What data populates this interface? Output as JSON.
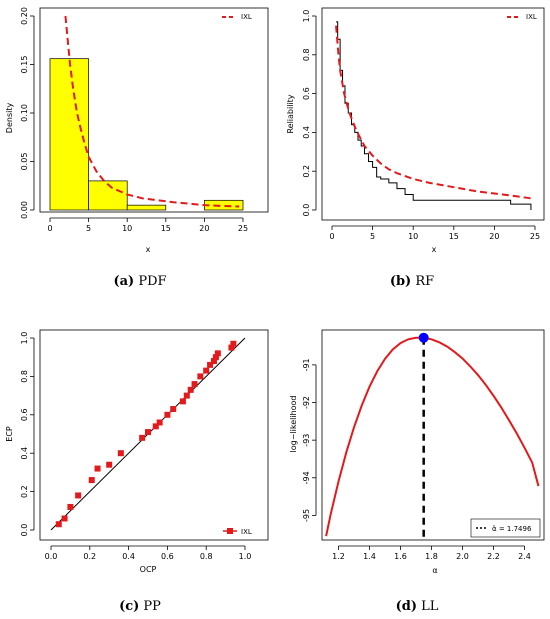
{
  "panels": [
    {
      "id": "a",
      "caption_letter": "(a)",
      "caption_text": "PDF",
      "chart_data": {
        "type": "bar",
        "title": "",
        "xlabel": "x",
        "ylabel": "Density",
        "xlim": [
          0,
          25
        ],
        "ylim": [
          0,
          0.2
        ],
        "xticks": [
          "0",
          "5",
          "10",
          "15",
          "20",
          "25"
        ],
        "xtick_values": [
          0,
          5,
          10,
          15,
          20,
          25
        ],
        "yticks": [
          "0.00",
          "0.05",
          "0.10",
          "0.15",
          "0.20"
        ],
        "ytick_values": [
          0,
          0.05,
          0.1,
          0.15,
          0.2
        ],
        "bins": [
          {
            "x0": 0,
            "x1": 5,
            "value": 0.156
          },
          {
            "x0": 5,
            "x1": 10,
            "value": 0.03
          },
          {
            "x0": 10,
            "x1": 15,
            "value": 0.005
          },
          {
            "x0": 15,
            "x1": 20,
            "value": 0.0
          },
          {
            "x0": 20,
            "x1": 25,
            "value": 0.01
          }
        ],
        "series": [
          {
            "name": "IXL",
            "x": [
              2.0,
              2.3,
              2.6,
              3.0,
              3.5,
              4.0,
              4.5,
              5.0,
              6.0,
              7.0,
              8.0,
              10.0,
              12.0,
              14.0,
              16.0,
              18.0,
              20.0,
              22.0,
              24.5
            ],
            "y": [
              0.2,
              0.175,
              0.15,
              0.125,
              0.1,
              0.083,
              0.068,
              0.055,
              0.04,
              0.03,
              0.023,
              0.016,
              0.012,
              0.01,
              0.008,
              0.0065,
              0.005,
              0.0043,
              0.0036
            ]
          }
        ],
        "legend": "top-right",
        "bar_color": "#ffff00",
        "line_color": "#e31a1c"
      }
    },
    {
      "id": "b",
      "caption_letter": "(b)",
      "caption_text": "RF",
      "chart_data": {
        "type": "line",
        "title": "",
        "xlabel": "x",
        "ylabel": "Reliability",
        "xlim": [
          0,
          25
        ],
        "ylim": [
          0,
          1
        ],
        "xticks": [
          "0",
          "5",
          "10",
          "15",
          "20",
          "25"
        ],
        "xtick_values": [
          0,
          5,
          10,
          15,
          20,
          25
        ],
        "yticks": [
          "0.0",
          "0.2",
          "0.4",
          "0.6",
          "0.8",
          "1.0"
        ],
        "ytick_values": [
          0,
          0.2,
          0.4,
          0.6,
          0.8,
          1.0
        ],
        "series": [
          {
            "name": "",
            "style": "step",
            "x": [
              0.5,
              0.7,
              1.0,
              1.3,
              1.6,
              2.0,
              2.4,
              2.8,
              3.2,
              3.6,
              4.0,
              4.5,
              5.0,
              5.5,
              6.0,
              7.0,
              8.0,
              9.0,
              10.0,
              12.0,
              15.0,
              18.0,
              22.0,
              24.5
            ],
            "y": [
              0.97,
              0.88,
              0.72,
              0.64,
              0.55,
              0.5,
              0.44,
              0.4,
              0.36,
              0.33,
              0.29,
              0.25,
              0.22,
              0.17,
              0.16,
              0.14,
              0.11,
              0.08,
              0.05,
              0.05,
              0.05,
              0.05,
              0.03,
              0.0
            ]
          },
          {
            "name": "IXL",
            "style": "dashed",
            "x": [
              0.5,
              0.8,
              1.0,
              1.5,
              2.0,
              2.5,
              3.0,
              4.0,
              5.0,
              6.0,
              7.0,
              8.0,
              10.0,
              12.0,
              14.0,
              16.0,
              18.0,
              20.0,
              22.0,
              24.5
            ],
            "y": [
              0.95,
              0.8,
              0.72,
              0.6,
              0.52,
              0.46,
              0.41,
              0.33,
              0.28,
              0.24,
              0.21,
              0.19,
              0.16,
              0.14,
              0.125,
              0.11,
              0.095,
              0.085,
              0.075,
              0.06
            ]
          }
        ],
        "legend": "top-right",
        "line_color": "#e31a1c"
      }
    },
    {
      "id": "c",
      "caption_letter": "(c)",
      "caption_text": "PP",
      "chart_data": {
        "type": "scatter",
        "title": "",
        "xlabel": "OCP",
        "ylabel": "ECP",
        "xlim": [
          0,
          1
        ],
        "ylim": [
          0,
          1
        ],
        "xticks": [
          "0.0",
          "0.2",
          "0.4",
          "0.6",
          "0.8",
          "1.0"
        ],
        "xtick_values": [
          0,
          0.2,
          0.4,
          0.6,
          0.8,
          1.0
        ],
        "yticks": [
          "0.0",
          "0.2",
          "0.4",
          "0.6",
          "0.8",
          "1.0"
        ],
        "ytick_values": [
          0,
          0.2,
          0.4,
          0.6,
          0.8,
          1.0
        ],
        "reference_line": {
          "x": [
            0,
            1
          ],
          "y": [
            0,
            1
          ]
        },
        "series": [
          {
            "name": "IXL",
            "x": [
              0.04,
              0.07,
              0.1,
              0.14,
              0.21,
              0.24,
              0.3,
              0.36,
              0.47,
              0.5,
              0.54,
              0.56,
              0.6,
              0.63,
              0.68,
              0.7,
              0.72,
              0.74,
              0.77,
              0.8,
              0.82,
              0.84,
              0.85,
              0.86,
              0.93,
              0.94
            ],
            "y": [
              0.03,
              0.06,
              0.12,
              0.18,
              0.26,
              0.32,
              0.34,
              0.4,
              0.48,
              0.51,
              0.54,
              0.56,
              0.6,
              0.63,
              0.67,
              0.7,
              0.73,
              0.76,
              0.8,
              0.83,
              0.86,
              0.88,
              0.9,
              0.92,
              0.95,
              0.97
            ]
          }
        ],
        "legend": "bottom-right",
        "marker_color": "#e31a1c"
      }
    },
    {
      "id": "d",
      "caption_letter": "(d)",
      "caption_text": "LL",
      "chart_data": {
        "type": "line",
        "title": "",
        "xlabel": "α",
        "ylabel": "log−likelihood",
        "xlim": [
          1.1,
          2.5
        ],
        "ylim": [
          -95.6,
          -90.1
        ],
        "xticks": [
          "1.2",
          "1.4",
          "1.6",
          "1.8",
          "2.0",
          "2.2",
          "2.4"
        ],
        "xtick_values": [
          1.2,
          1.4,
          1.6,
          1.8,
          2.0,
          2.2,
          2.4
        ],
        "yticks": [
          "-95",
          "-94",
          "-93",
          "-92",
          "-91"
        ],
        "ytick_values": [
          -95,
          -94,
          -93,
          -92,
          -91
        ],
        "series": [
          {
            "name": "",
            "x": [
              1.12,
              1.15,
              1.2,
              1.25,
              1.3,
              1.35,
              1.4,
              1.45,
              1.5,
              1.55,
              1.6,
              1.65,
              1.7,
              1.75,
              1.8,
              1.85,
              1.9,
              1.95,
              2.0,
              2.05,
              2.1,
              2.15,
              2.2,
              2.25,
              2.3,
              2.35,
              2.4,
              2.45,
              2.49
            ],
            "y": [
              -95.55,
              -94.96,
              -94.1,
              -93.33,
              -92.66,
              -92.08,
              -91.58,
              -91.17,
              -90.84,
              -90.59,
              -90.42,
              -90.32,
              -90.28,
              -90.28,
              -90.32,
              -90.4,
              -90.51,
              -90.66,
              -90.83,
              -91.04,
              -91.27,
              -91.53,
              -91.82,
              -92.13,
              -92.47,
              -92.82,
              -93.2,
              -93.6,
              -94.22
            ]
          }
        ],
        "mle": {
          "x": 1.7496,
          "y": -90.28
        },
        "legend_label": "α̂ = 1.7496",
        "legend": "bottom-right",
        "line_color": "#e31a1c",
        "point_color": "#0000ff"
      }
    }
  ]
}
